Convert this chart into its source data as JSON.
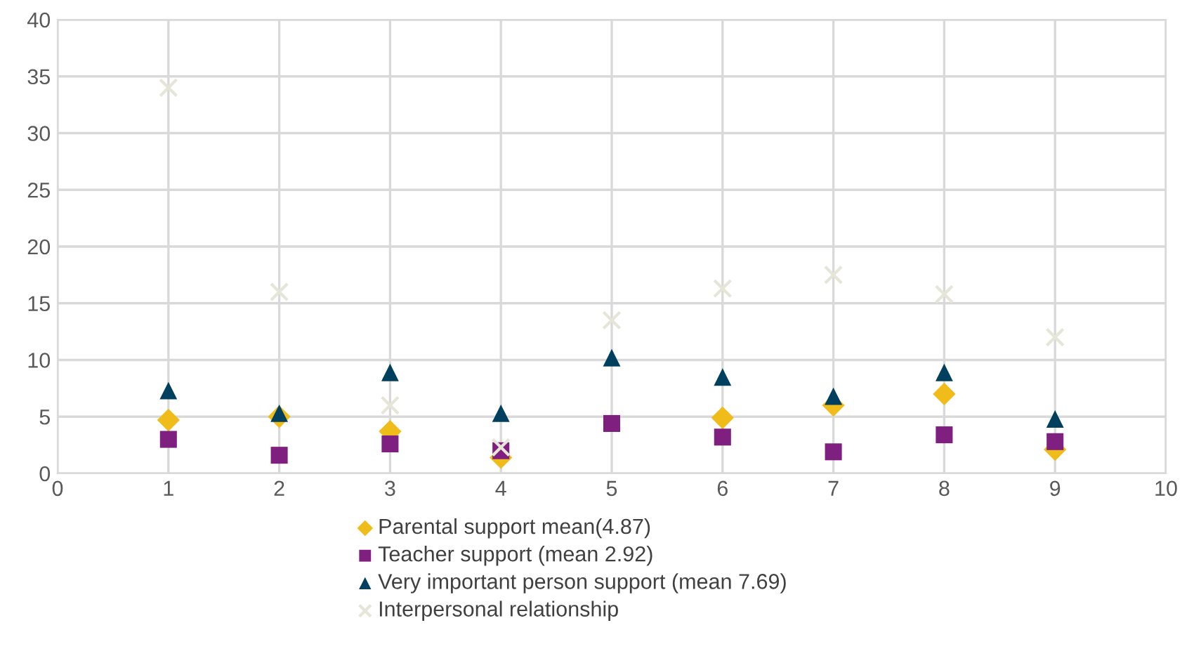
{
  "chart_data": {
    "type": "scatter",
    "xlim": [
      0,
      10
    ],
    "xticks": [
      0,
      1,
      2,
      3,
      4,
      5,
      6,
      7,
      8,
      9,
      10
    ],
    "ylim": [
      0,
      40
    ],
    "yticks": [
      0,
      5,
      10,
      15,
      20,
      25,
      30,
      35,
      40
    ],
    "grid": true,
    "legend": "bottom",
    "x": [
      1,
      2,
      3,
      4,
      5,
      6,
      7,
      8,
      9
    ],
    "series": [
      {
        "name": "Parental support mean(4.87)",
        "color": "#f0bc19",
        "marker": "diamond",
        "values": [
          4.7,
          5.0,
          3.7,
          1.4,
          null,
          4.9,
          6.0,
          7.0,
          2.1
        ]
      },
      {
        "name": "Teacher support (mean 2.92)",
        "color": "#7f1f7f",
        "marker": "square",
        "values": [
          3.0,
          1.6,
          2.6,
          2.0,
          4.4,
          3.2,
          1.9,
          3.4,
          2.8
        ]
      },
      {
        "name": "Very important person support (mean 7.69)",
        "color": "#00405f",
        "marker": "triangle",
        "values": [
          7.3,
          5.3,
          8.9,
          5.3,
          10.2,
          8.5,
          6.8,
          8.9,
          4.8
        ]
      },
      {
        "name": "Interpersonal relationship",
        "color": "#e6e6d8",
        "marker": "cross",
        "values": [
          34,
          16,
          6.0,
          2.3,
          13.5,
          16.3,
          17.5,
          15.8,
          12.0
        ]
      }
    ]
  }
}
